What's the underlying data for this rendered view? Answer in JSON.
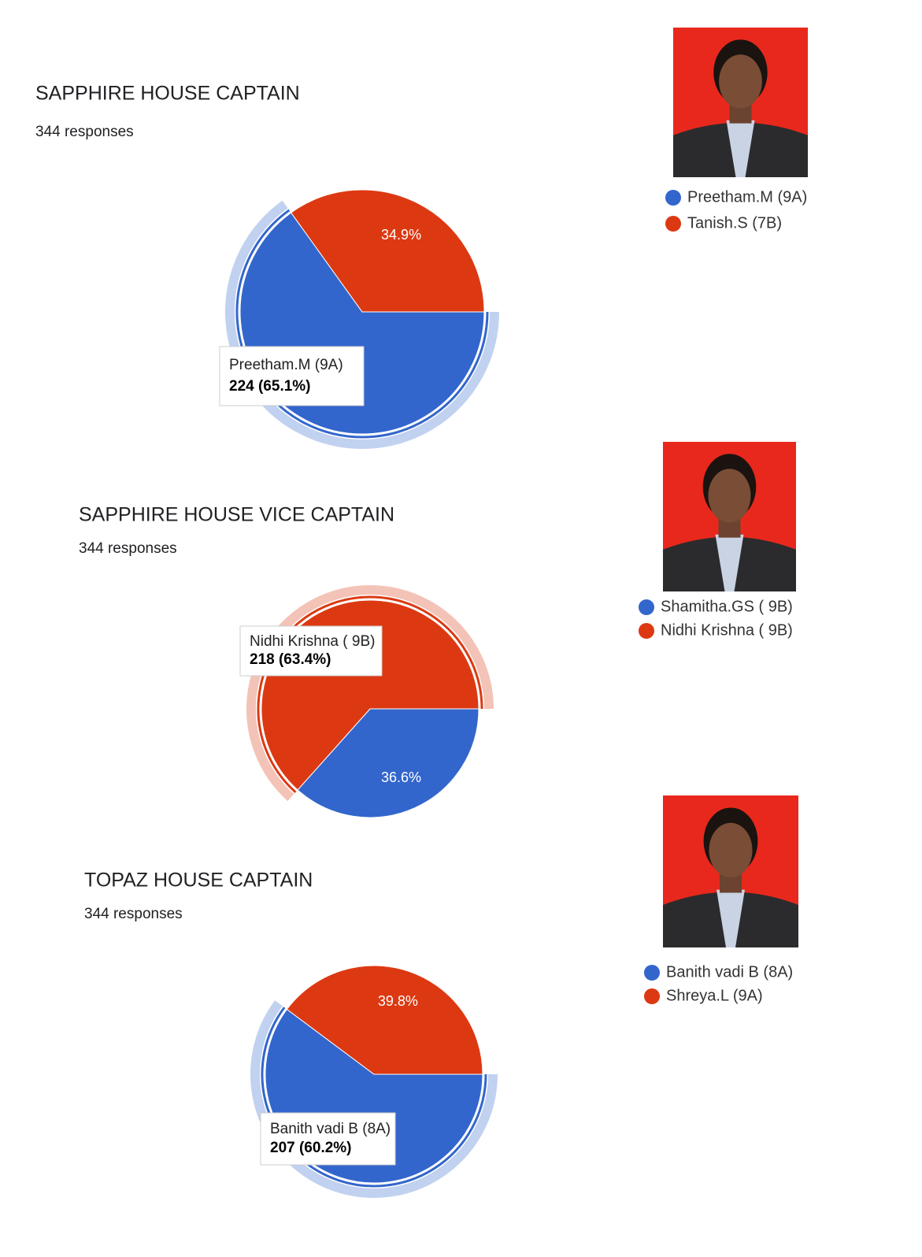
{
  "chart_data": [
    {
      "type": "pie",
      "title": "SAPPHIRE  HOUSE CAPTAIN",
      "subtitle": "344 responses",
      "categories": [
        "Preetham.M (9A)",
        "Tanish.S (7B)"
      ],
      "values": [
        65.1,
        34.9
      ],
      "value_labels": [
        null,
        "34.9%"
      ],
      "colors": [
        "#3366cc",
        "#dc3912"
      ],
      "highlight": 0,
      "tooltip": "224 (65.1%)"
    },
    {
      "type": "pie",
      "title": "SAPPHIRE  HOUSE  VICE CAPTAIN",
      "subtitle": "344 responses",
      "categories": [
        "Shamitha.GS ( 9B)",
        "Nidhi Krishna ( 9B)"
      ],
      "values": [
        36.6,
        63.4
      ],
      "value_labels": [
        "36.6%",
        null
      ],
      "colors": [
        "#3366cc",
        "#dc3912"
      ],
      "highlight": 1,
      "tooltip": "218 (63.4%)"
    },
    {
      "type": "pie",
      "title": "TOPAZ HOUSE CAPTAIN",
      "subtitle": "344 responses",
      "categories": [
        "Banith vadi B (8A)",
        "Shreya.L (9A)"
      ],
      "values": [
        60.2,
        39.8
      ],
      "value_labels": [
        null,
        "39.8%"
      ],
      "colors": [
        "#3366cc",
        "#dc3912"
      ],
      "highlight": 0,
      "tooltip": "207 (60.2%)"
    }
  ]
}
